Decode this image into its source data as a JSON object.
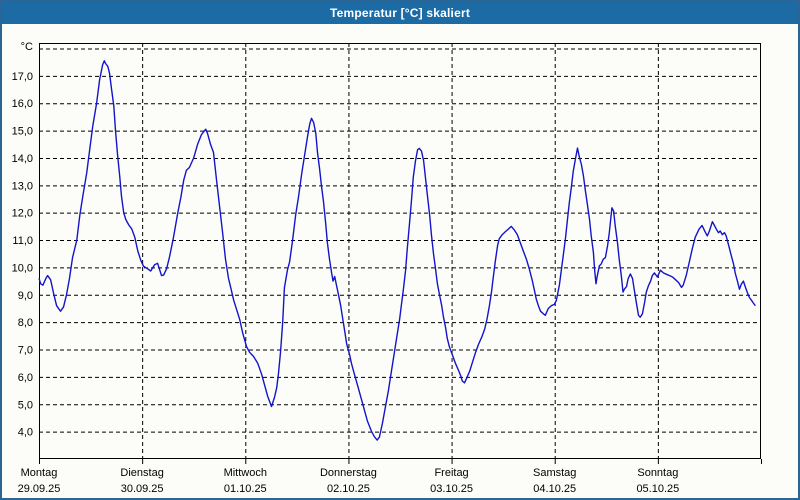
{
  "window": {
    "title": "Temperatur [°C] skaliert"
  },
  "colors": {
    "titlebar": "#1d6ba5",
    "window_border": "#2a6593",
    "background": "#fcfdf8",
    "grid": "#000000",
    "line": "#1414c8"
  },
  "chart_data": {
    "type": "line",
    "title": "Temperatur [°C] skaliert",
    "series_name": "Temperatur",
    "unit_label": "°C",
    "legend": "none",
    "grid": "dashed",
    "ylim": [
      3.0,
      18.2
    ],
    "y_tick_values": [
      4,
      5,
      6,
      7,
      8,
      9,
      10,
      11,
      12,
      13,
      14,
      15,
      16,
      17
    ],
    "y_tick_labels": [
      "4,0",
      "5,0",
      "6,0",
      "7,0",
      "8,0",
      "9,0",
      "10,0",
      "11,0",
      "12,0",
      "13,0",
      "14,0",
      "15,0",
      "16,0",
      "17,0"
    ],
    "y_grid_extra_values": [
      18
    ],
    "x_unit": "hours_from_monday_00:00",
    "x_range_hours": [
      0,
      168
    ],
    "x_days": [
      {
        "name": "Montag",
        "date": "29.09.25"
      },
      {
        "name": "Dienstag",
        "date": "30.09.25"
      },
      {
        "name": "Mittwoch",
        "date": "01.10.25"
      },
      {
        "name": "Donnerstag",
        "date": "02.10.25"
      },
      {
        "name": "Freitag",
        "date": "03.10.25"
      },
      {
        "name": "Samstag",
        "date": "04.10.25"
      },
      {
        "name": "Sonntag",
        "date": "05.10.25"
      }
    ],
    "points": [
      [
        0.0,
        9.6
      ],
      [
        0.4,
        9.4
      ],
      [
        0.9,
        9.35
      ],
      [
        1.6,
        9.6
      ],
      [
        2.0,
        9.7
      ],
      [
        2.7,
        9.55
      ],
      [
        3.4,
        9.05
      ],
      [
        4.1,
        8.6
      ],
      [
        5.0,
        8.4
      ],
      [
        5.7,
        8.55
      ],
      [
        6.4,
        9.0
      ],
      [
        7.1,
        9.6
      ],
      [
        7.8,
        10.35
      ],
      [
        8.8,
        11.0
      ],
      [
        9.5,
        11.9
      ],
      [
        10.2,
        12.6
      ],
      [
        11.1,
        13.45
      ],
      [
        11.8,
        14.3
      ],
      [
        12.5,
        15.15
      ],
      [
        13.4,
        16.0
      ],
      [
        14.1,
        16.85
      ],
      [
        14.8,
        17.4
      ],
      [
        15.2,
        17.55
      ],
      [
        15.5,
        17.45
      ],
      [
        16.0,
        17.35
      ],
      [
        16.4,
        17.1
      ],
      [
        16.9,
        16.5
      ],
      [
        17.4,
        15.9
      ],
      [
        17.8,
        15.0
      ],
      [
        18.3,
        14.1
      ],
      [
        18.8,
        13.3
      ],
      [
        19.2,
        12.6
      ],
      [
        19.7,
        12.0
      ],
      [
        20.2,
        11.75
      ],
      [
        20.9,
        11.55
      ],
      [
        21.6,
        11.4
      ],
      [
        22.3,
        11.1
      ],
      [
        23.0,
        10.6
      ],
      [
        23.7,
        10.25
      ],
      [
        24.3,
        10.05
      ],
      [
        25.3,
        9.95
      ],
      [
        26.0,
        9.87
      ],
      [
        26.9,
        10.1
      ],
      [
        27.6,
        10.15
      ],
      [
        28.1,
        9.9
      ],
      [
        28.5,
        9.7
      ],
      [
        29.0,
        9.72
      ],
      [
        29.7,
        9.95
      ],
      [
        30.4,
        10.4
      ],
      [
        31.3,
        11.1
      ],
      [
        32.3,
        12.0
      ],
      [
        33.0,
        12.55
      ],
      [
        33.7,
        13.2
      ],
      [
        34.3,
        13.55
      ],
      [
        35.0,
        13.65
      ],
      [
        36.0,
        14.0
      ],
      [
        36.9,
        14.5
      ],
      [
        37.8,
        14.85
      ],
      [
        38.8,
        15.05
      ],
      [
        39.2,
        14.9
      ],
      [
        39.9,
        14.5
      ],
      [
        40.6,
        14.2
      ],
      [
        41.3,
        13.2
      ],
      [
        42.0,
        12.25
      ],
      [
        42.7,
        11.3
      ],
      [
        43.4,
        10.3
      ],
      [
        44.1,
        9.6
      ],
      [
        44.6,
        9.27
      ],
      [
        45.3,
        8.8
      ],
      [
        46.0,
        8.45
      ],
      [
        46.7,
        8.1
      ],
      [
        47.4,
        7.6
      ],
      [
        48.3,
        7.1
      ],
      [
        49.0,
        6.9
      ],
      [
        49.9,
        6.75
      ],
      [
        50.9,
        6.5
      ],
      [
        51.8,
        6.1
      ],
      [
        52.5,
        5.7
      ],
      [
        53.2,
        5.3
      ],
      [
        54.1,
        4.92
      ],
      [
        54.8,
        5.25
      ],
      [
        55.3,
        5.6
      ],
      [
        55.7,
        6.1
      ],
      [
        56.2,
        6.9
      ],
      [
        56.7,
        8.0
      ],
      [
        57.1,
        9.25
      ],
      [
        57.8,
        9.9
      ],
      [
        58.3,
        10.2
      ],
      [
        59.0,
        11.0
      ],
      [
        59.7,
        11.9
      ],
      [
        60.4,
        12.6
      ],
      [
        61.1,
        13.4
      ],
      [
        61.8,
        14.1
      ],
      [
        62.5,
        14.8
      ],
      [
        63.0,
        15.25
      ],
      [
        63.4,
        15.45
      ],
      [
        63.9,
        15.3
      ],
      [
        64.4,
        14.9
      ],
      [
        64.8,
        14.2
      ],
      [
        65.3,
        13.6
      ],
      [
        65.7,
        13.0
      ],
      [
        66.2,
        12.4
      ],
      [
        66.7,
        11.6
      ],
      [
        67.1,
        10.9
      ],
      [
        67.6,
        10.3
      ],
      [
        68.1,
        9.78
      ],
      [
        68.4,
        9.5
      ],
      [
        68.8,
        9.67
      ],
      [
        69.2,
        9.36
      ],
      [
        69.7,
        9.0
      ],
      [
        70.2,
        8.6
      ],
      [
        70.6,
        8.2
      ],
      [
        71.1,
        7.7
      ],
      [
        71.6,
        7.2
      ],
      [
        72.3,
        6.8
      ],
      [
        72.7,
        6.5
      ],
      [
        73.4,
        6.1
      ],
      [
        74.1,
        5.7
      ],
      [
        75.0,
        5.2
      ],
      [
        75.7,
        4.8
      ],
      [
        76.4,
        4.4
      ],
      [
        77.4,
        4.0
      ],
      [
        78.1,
        3.8
      ],
      [
        78.7,
        3.69
      ],
      [
        79.2,
        3.8
      ],
      [
        79.9,
        4.3
      ],
      [
        80.6,
        4.9
      ],
      [
        81.3,
        5.5
      ],
      [
        82.0,
        6.2
      ],
      [
        82.7,
        6.9
      ],
      [
        83.4,
        7.6
      ],
      [
        83.9,
        8.1
      ],
      [
        84.3,
        8.6
      ],
      [
        84.8,
        9.2
      ],
      [
        85.3,
        9.9
      ],
      [
        85.7,
        10.7
      ],
      [
        86.2,
        11.6
      ],
      [
        86.7,
        12.5
      ],
      [
        87.1,
        13.3
      ],
      [
        87.6,
        13.9
      ],
      [
        88.1,
        14.3
      ],
      [
        88.5,
        14.35
      ],
      [
        89.0,
        14.25
      ],
      [
        89.5,
        13.9
      ],
      [
        89.9,
        13.3
      ],
      [
        90.4,
        12.6
      ],
      [
        90.9,
        11.9
      ],
      [
        91.3,
        11.2
      ],
      [
        91.8,
        10.5
      ],
      [
        92.3,
        9.9
      ],
      [
        92.7,
        9.4
      ],
      [
        93.2,
        9.0
      ],
      [
        93.7,
        8.6
      ],
      [
        94.1,
        8.2
      ],
      [
        94.6,
        7.8
      ],
      [
        95.0,
        7.4
      ],
      [
        95.5,
        7.1
      ],
      [
        96.2,
        6.8
      ],
      [
        96.9,
        6.5
      ],
      [
        97.6,
        6.25
      ],
      [
        98.1,
        6.05
      ],
      [
        98.5,
        5.85
      ],
      [
        99.0,
        5.78
      ],
      [
        99.5,
        5.95
      ],
      [
        100.2,
        6.2
      ],
      [
        100.9,
        6.55
      ],
      [
        101.6,
        6.9
      ],
      [
        102.3,
        7.2
      ],
      [
        103.0,
        7.45
      ],
      [
        103.7,
        7.75
      ],
      [
        104.3,
        8.15
      ],
      [
        104.8,
        8.6
      ],
      [
        105.3,
        9.1
      ],
      [
        105.7,
        9.65
      ],
      [
        106.2,
        10.25
      ],
      [
        106.7,
        10.8
      ],
      [
        107.1,
        11.05
      ],
      [
        107.8,
        11.2
      ],
      [
        108.5,
        11.3
      ],
      [
        109.2,
        11.4
      ],
      [
        109.9,
        11.5
      ],
      [
        110.6,
        11.37
      ],
      [
        111.3,
        11.2
      ],
      [
        112.0,
        10.9
      ],
      [
        112.7,
        10.6
      ],
      [
        113.4,
        10.3
      ],
      [
        114.1,
        9.93
      ],
      [
        114.8,
        9.5
      ],
      [
        115.3,
        9.15
      ],
      [
        115.7,
        8.85
      ],
      [
        116.2,
        8.6
      ],
      [
        116.7,
        8.4
      ],
      [
        117.4,
        8.3
      ],
      [
        117.8,
        8.25
      ],
      [
        118.5,
        8.5
      ],
      [
        119.2,
        8.6
      ],
      [
        119.9,
        8.65
      ],
      [
        120.4,
        8.8
      ],
      [
        121.1,
        9.36
      ],
      [
        121.6,
        9.97
      ],
      [
        122.0,
        10.45
      ],
      [
        122.5,
        11.07
      ],
      [
        123.0,
        11.8
      ],
      [
        123.4,
        12.36
      ],
      [
        123.9,
        12.97
      ],
      [
        124.3,
        13.5
      ],
      [
        124.8,
        13.94
      ],
      [
        125.3,
        14.36
      ],
      [
        125.7,
        14.06
      ],
      [
        126.2,
        13.76
      ],
      [
        126.7,
        13.33
      ],
      [
        127.1,
        12.85
      ],
      [
        127.6,
        12.3
      ],
      [
        128.1,
        11.76
      ],
      [
        128.5,
        11.16
      ],
      [
        129.0,
        10.55
      ],
      [
        129.3,
        9.88
      ],
      [
        129.6,
        9.4
      ],
      [
        129.9,
        9.7
      ],
      [
        130.4,
        10.06
      ],
      [
        130.8,
        10.12
      ],
      [
        131.3,
        10.3
      ],
      [
        131.8,
        10.36
      ],
      [
        132.3,
        10.8
      ],
      [
        132.7,
        11.27
      ],
      [
        133.3,
        12.18
      ],
      [
        133.7,
        12.06
      ],
      [
        134.1,
        11.5
      ],
      [
        134.6,
        10.9
      ],
      [
        135.0,
        10.3
      ],
      [
        135.5,
        9.7
      ],
      [
        135.9,
        9.1
      ],
      [
        136.2,
        9.2
      ],
      [
        136.7,
        9.3
      ],
      [
        137.1,
        9.6
      ],
      [
        137.6,
        9.76
      ],
      [
        138.1,
        9.6
      ],
      [
        138.5,
        9.2
      ],
      [
        139.0,
        8.7
      ],
      [
        139.5,
        8.25
      ],
      [
        139.9,
        8.18
      ],
      [
        140.4,
        8.3
      ],
      [
        140.9,
        8.7
      ],
      [
        141.3,
        9.1
      ],
      [
        141.8,
        9.33
      ],
      [
        142.3,
        9.5
      ],
      [
        142.7,
        9.7
      ],
      [
        143.2,
        9.8
      ],
      [
        143.9,
        9.65
      ],
      [
        144.6,
        9.9
      ],
      [
        145.3,
        9.8
      ],
      [
        146.0,
        9.75
      ],
      [
        146.7,
        9.7
      ],
      [
        147.4,
        9.65
      ],
      [
        148.1,
        9.55
      ],
      [
        148.8,
        9.45
      ],
      [
        149.5,
        9.27
      ],
      [
        149.9,
        9.35
      ],
      [
        150.6,
        9.7
      ],
      [
        151.3,
        10.18
      ],
      [
        152.0,
        10.67
      ],
      [
        152.7,
        11.1
      ],
      [
        153.6,
        11.4
      ],
      [
        154.3,
        11.53
      ],
      [
        155.0,
        11.3
      ],
      [
        155.5,
        11.15
      ],
      [
        156.0,
        11.33
      ],
      [
        156.7,
        11.67
      ],
      [
        157.1,
        11.55
      ],
      [
        157.6,
        11.4
      ],
      [
        158.1,
        11.27
      ],
      [
        158.5,
        11.33
      ],
      [
        159.0,
        11.2
      ],
      [
        159.5,
        11.27
      ],
      [
        159.9,
        11.15
      ],
      [
        160.6,
        10.73
      ],
      [
        161.1,
        10.43
      ],
      [
        161.6,
        10.13
      ],
      [
        162.0,
        9.8
      ],
      [
        162.5,
        9.5
      ],
      [
        163.0,
        9.2
      ],
      [
        163.4,
        9.38
      ],
      [
        163.9,
        9.5
      ],
      [
        164.4,
        9.27
      ],
      [
        164.8,
        9.1
      ],
      [
        165.3,
        8.9
      ],
      [
        165.8,
        8.8
      ],
      [
        166.2,
        8.7
      ],
      [
        166.7,
        8.6
      ]
    ]
  }
}
